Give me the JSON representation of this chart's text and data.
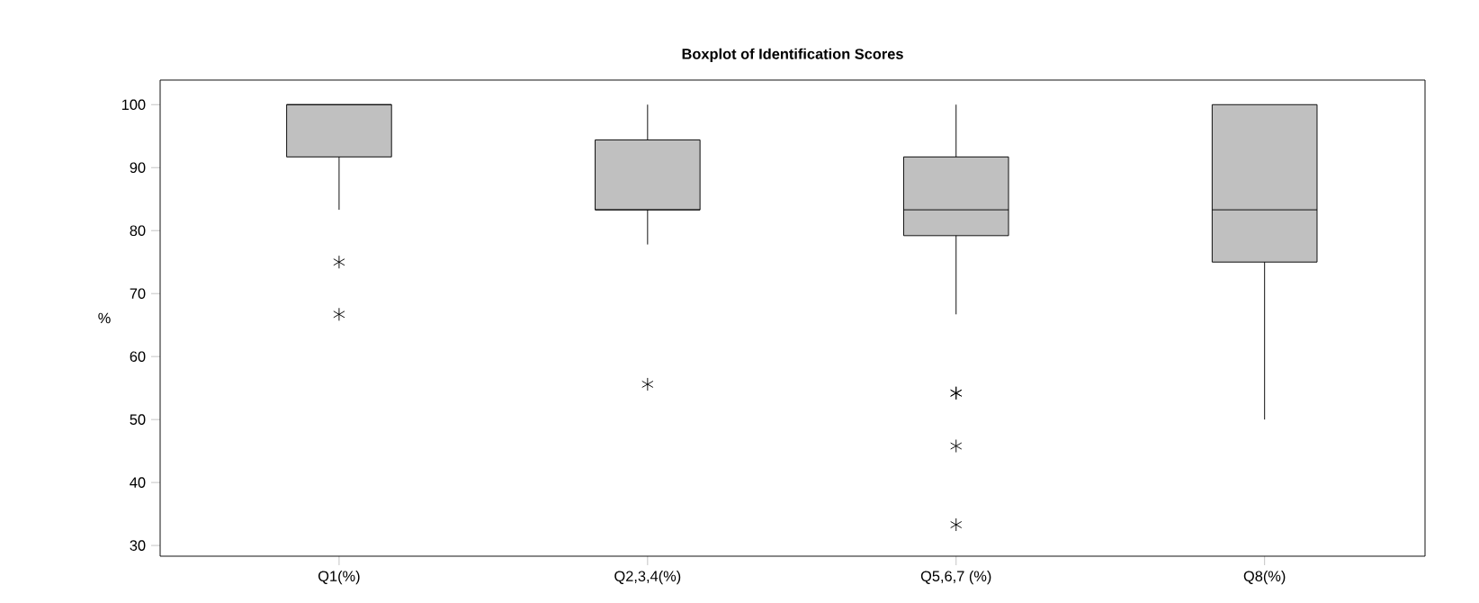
{
  "chart_data": {
    "type": "box",
    "title": "Boxplot of Identification Scores",
    "ylabel": "%",
    "categories": [
      "Q1(%)",
      "Q2,3,4(%)",
      "Q5,6,7 (%)",
      "Q8(%)"
    ],
    "boxes": [
      {
        "low": 83.3,
        "q1": 91.7,
        "median": 100,
        "q3": 100,
        "high": 100,
        "outliers": [
          75,
          66.7
        ]
      },
      {
        "low": 77.8,
        "q1": 83.3,
        "median": 83.3,
        "q3": 94.4,
        "high": 100,
        "outliers": [
          55.6
        ]
      },
      {
        "low": 66.7,
        "q1": 79.2,
        "median": 83.3,
        "q3": 91.7,
        "high": 100,
        "outliers": [
          54.2,
          54.2,
          45.8,
          33.3
        ]
      },
      {
        "low": 50,
        "q1": 75,
        "median": 83.3,
        "q3": 100,
        "high": 100
      }
    ],
    "color": "#c0c0c0",
    "marker": "star",
    "grid": false,
    "ylim": [
      28.3,
      103.9
    ],
    "yticks": [
      30,
      40,
      50,
      60,
      70,
      80,
      90,
      100
    ]
  }
}
